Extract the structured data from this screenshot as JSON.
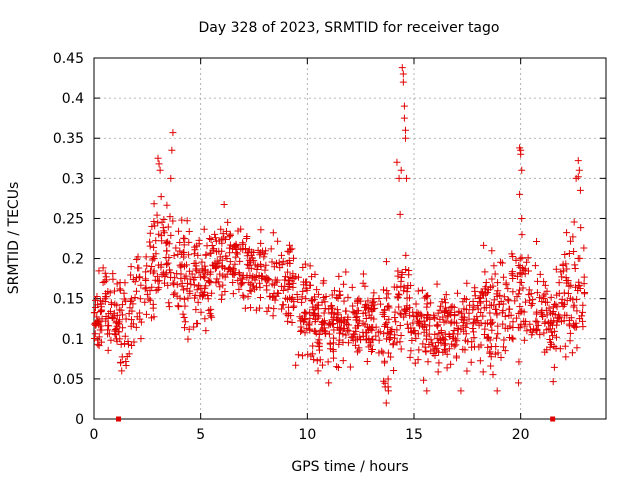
{
  "chart_data": {
    "type": "scatter",
    "title": "Day 328 of 2023, SRMTID for receiver tago",
    "xlabel": "GPS time / hours",
    "ylabel": "SRMTID / TECUs",
    "xlim": [
      0,
      24
    ],
    "ylim": [
      0,
      0.45
    ],
    "x_ticks": [
      0,
      5,
      10,
      15,
      20
    ],
    "x_tick_labels": [
      "0",
      "5",
      "10",
      "15",
      "20"
    ],
    "y_ticks": [
      0,
      0.05,
      0.1,
      0.15,
      0.2,
      0.25,
      0.3,
      0.35,
      0.4,
      0.45
    ],
    "y_tick_labels": [
      "0",
      "0.05",
      "0.1",
      "0.15",
      "0.2",
      "0.25",
      "0.3",
      "0.35",
      "0.4",
      "0.45"
    ],
    "grid": true,
    "marker": "+",
    "color": "#e00000",
    "series": [
      {
        "name": "SRMTID",
        "x_range": [
          0,
          23.0
        ],
        "envelope": {
          "hours": [
            0,
            0.5,
            1,
            1.5,
            2,
            2.5,
            3,
            3.5,
            4,
            5,
            6,
            7,
            8,
            9,
            10,
            11,
            12,
            13,
            13.5,
            14,
            14.5,
            15,
            16,
            17,
            18,
            19,
            19.5,
            20,
            20.5,
            21,
            21.5,
            22,
            22.5,
            23
          ],
          "center": [
            0.12,
            0.14,
            0.12,
            0.12,
            0.15,
            0.17,
            0.22,
            0.2,
            0.18,
            0.17,
            0.2,
            0.19,
            0.18,
            0.17,
            0.13,
            0.12,
            0.12,
            0.12,
            0.11,
            0.12,
            0.16,
            0.12,
            0.11,
            0.12,
            0.13,
            0.13,
            0.13,
            0.17,
            0.15,
            0.13,
            0.12,
            0.14,
            0.17,
            0.16
          ],
          "spread": [
            0.03,
            0.05,
            0.04,
            0.05,
            0.05,
            0.05,
            0.06,
            0.06,
            0.06,
            0.05,
            0.04,
            0.04,
            0.04,
            0.04,
            0.05,
            0.04,
            0.04,
            0.04,
            0.05,
            0.05,
            0.06,
            0.04,
            0.04,
            0.04,
            0.05,
            0.05,
            0.05,
            0.06,
            0.05,
            0.04,
            0.04,
            0.06,
            0.07,
            0.06
          ]
        },
        "count": 1500,
        "spikes": [
          {
            "x": 3.0,
            "y": 0.325
          },
          {
            "x": 3.05,
            "y": 0.318
          },
          {
            "x": 3.1,
            "y": 0.31
          },
          {
            "x": 3.7,
            "y": 0.357
          },
          {
            "x": 3.65,
            "y": 0.335
          },
          {
            "x": 3.6,
            "y": 0.3
          },
          {
            "x": 14.2,
            "y": 0.32
          },
          {
            "x": 14.3,
            "y": 0.3
          },
          {
            "x": 14.35,
            "y": 0.255
          },
          {
            "x": 14.45,
            "y": 0.438
          },
          {
            "x": 14.5,
            "y": 0.43
          },
          {
            "x": 14.5,
            "y": 0.42
          },
          {
            "x": 14.55,
            "y": 0.39
          },
          {
            "x": 14.55,
            "y": 0.375
          },
          {
            "x": 14.6,
            "y": 0.36
          },
          {
            "x": 14.6,
            "y": 0.35
          },
          {
            "x": 14.4,
            "y": 0.31
          },
          {
            "x": 14.65,
            "y": 0.3
          },
          {
            "x": 19.95,
            "y": 0.338
          },
          {
            "x": 20.0,
            "y": 0.335
          },
          {
            "x": 20.0,
            "y": 0.33
          },
          {
            "x": 20.05,
            "y": 0.31
          },
          {
            "x": 19.95,
            "y": 0.28
          },
          {
            "x": 20.05,
            "y": 0.25
          },
          {
            "x": 22.7,
            "y": 0.322
          },
          {
            "x": 22.75,
            "y": 0.31
          },
          {
            "x": 22.7,
            "y": 0.302
          },
          {
            "x": 22.6,
            "y": 0.3
          },
          {
            "x": 22.8,
            "y": 0.285
          },
          {
            "x": 13.7,
            "y": 0.02
          },
          {
            "x": 13.65,
            "y": 0.04
          },
          {
            "x": 13.8,
            "y": 0.035
          },
          {
            "x": 15.6,
            "y": 0.035
          },
          {
            "x": 17.2,
            "y": 0.035
          },
          {
            "x": 19.9,
            "y": 0.045
          },
          {
            "x": 11.0,
            "y": 0.045
          },
          {
            "x": 1.3,
            "y": 0.06
          },
          {
            "x": 1.25,
            "y": 0.07
          },
          {
            "x": 18.9,
            "y": 0.035
          },
          {
            "x": 10.5,
            "y": 0.06
          }
        ]
      }
    ],
    "baseline_markers": [
      {
        "x": 1.15,
        "y": 0
      },
      {
        "x": 21.5,
        "y": 0
      }
    ]
  }
}
